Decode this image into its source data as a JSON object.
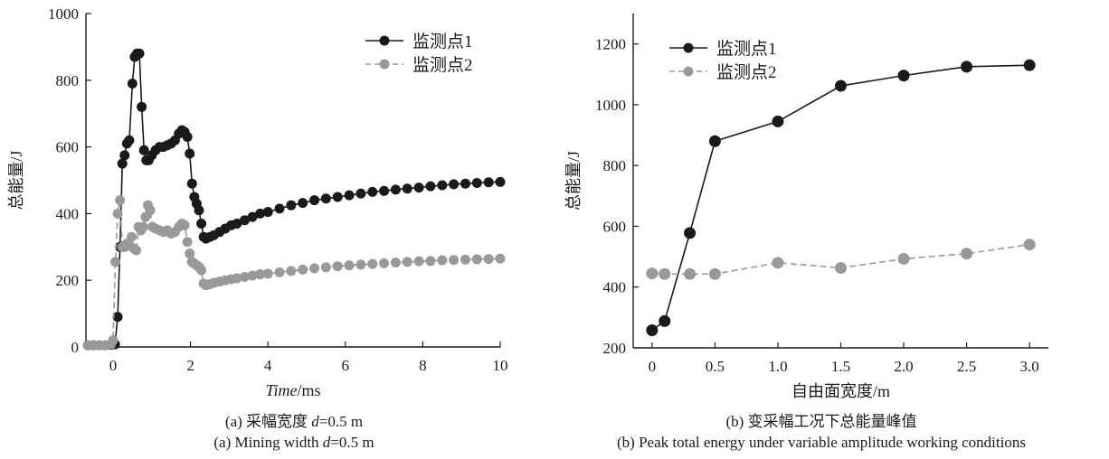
{
  "chart_data": [
    {
      "type": "scatter",
      "panel": "a",
      "xlabel_italic": "Time",
      "xlabel_unit": "/ms",
      "ylabel": "总能量/J",
      "xlim": [
        -0.7,
        10
      ],
      "ylim": [
        0,
        1000
      ],
      "xticks": [
        0,
        2,
        4,
        6,
        8,
        10
      ],
      "yticks": [
        0,
        200,
        400,
        600,
        800,
        1000
      ],
      "legend_position": "top-right",
      "caption_cn_prefix": "(a) 采幅宽度 ",
      "caption_cn_var": "d",
      "caption_cn_suffix": "=0.5 m",
      "caption_en_prefix": "(a) Mining width ",
      "caption_en_var": "d",
      "caption_en_suffix": "=0.5 m",
      "series": [
        {
          "name": "监测点1",
          "color": "#1a1a1a",
          "line_style": "solid",
          "x": [
            -0.65,
            -0.5,
            -0.35,
            -0.2,
            -0.05,
            0.05,
            0.12,
            0.18,
            0.24,
            0.3,
            0.36,
            0.42,
            0.5,
            0.56,
            0.62,
            0.68,
            0.74,
            0.8,
            0.86,
            0.92,
            1.0,
            1.1,
            1.2,
            1.3,
            1.4,
            1.5,
            1.6,
            1.7,
            1.78,
            1.85,
            1.92,
            1.98,
            2.04,
            2.1,
            2.16,
            2.22,
            2.28,
            2.34,
            2.4,
            2.5,
            2.6,
            2.75,
            2.9,
            3.05,
            3.2,
            3.4,
            3.6,
            3.8,
            4.0,
            4.3,
            4.6,
            4.9,
            5.2,
            5.5,
            5.8,
            6.1,
            6.4,
            6.7,
            7.0,
            7.3,
            7.6,
            7.9,
            8.2,
            8.5,
            8.8,
            9.1,
            9.4,
            9.7,
            10.0
          ],
          "y": [
            5,
            5,
            5,
            5,
            6,
            8,
            90,
            300,
            550,
            575,
            610,
            620,
            790,
            870,
            880,
            880,
            720,
            590,
            560,
            560,
            575,
            590,
            600,
            600,
            605,
            610,
            620,
            640,
            650,
            645,
            630,
            580,
            490,
            450,
            430,
            410,
            370,
            330,
            325,
            330,
            335,
            345,
            355,
            365,
            370,
            380,
            390,
            400,
            405,
            415,
            425,
            432,
            440,
            445,
            450,
            455,
            460,
            465,
            468,
            472,
            475,
            478,
            482,
            485,
            488,
            490,
            492,
            494,
            495
          ]
        },
        {
          "name": "监测点2",
          "color": "#999999",
          "line_style": "dashed",
          "x": [
            -0.65,
            -0.5,
            -0.35,
            -0.2,
            -0.05,
            0.0,
            0.06,
            0.12,
            0.18,
            0.24,
            0.3,
            0.36,
            0.42,
            0.48,
            0.54,
            0.6,
            0.66,
            0.72,
            0.78,
            0.84,
            0.9,
            0.96,
            1.02,
            1.1,
            1.2,
            1.3,
            1.4,
            1.5,
            1.6,
            1.7,
            1.78,
            1.85,
            1.92,
            1.98,
            2.04,
            2.1,
            2.16,
            2.22,
            2.28,
            2.34,
            2.4,
            2.5,
            2.6,
            2.75,
            2.9,
            3.05,
            3.2,
            3.4,
            3.6,
            3.8,
            4.0,
            4.3,
            4.6,
            4.9,
            5.2,
            5.5,
            5.8,
            6.1,
            6.4,
            6.7,
            7.0,
            7.3,
            7.6,
            7.9,
            8.2,
            8.5,
            8.8,
            9.1,
            9.4,
            9.7,
            10.0
          ],
          "y": [
            5,
            5,
            5,
            5,
            8,
            20,
            255,
            400,
            440,
            300,
            300,
            310,
            305,
            330,
            295,
            290,
            360,
            350,
            360,
            390,
            425,
            410,
            360,
            355,
            350,
            345,
            350,
            340,
            345,
            360,
            370,
            365,
            315,
            280,
            255,
            250,
            245,
            240,
            230,
            190,
            185,
            188,
            192,
            196,
            200,
            203,
            206,
            210,
            214,
            218,
            220,
            224,
            228,
            232,
            236,
            239,
            242,
            245,
            247,
            249,
            251,
            253,
            255,
            257,
            258,
            260,
            261,
            262,
            263,
            264,
            265
          ]
        }
      ]
    },
    {
      "type": "line",
      "panel": "b",
      "xlabel": "自由面宽度/m",
      "ylabel": "总能量/J",
      "xlim": [
        -0.15,
        3.15
      ],
      "ylim": [
        200,
        1300
      ],
      "xticks": [
        0,
        0.5,
        1.0,
        1.5,
        2.0,
        2.5,
        3.0
      ],
      "xtick_labels": [
        "0",
        "0.5",
        "1.0",
        "1.5",
        "2.0",
        "2.5",
        "3.0"
      ],
      "yticks": [
        200,
        400,
        600,
        800,
        1000,
        1200
      ],
      "legend_position": "top-left",
      "caption_cn": "(b) 变采幅工况下总能量峰值",
      "caption_en": "(b) Peak total energy under variable amplitude working conditions",
      "series": [
        {
          "name": "监测点1",
          "color": "#1a1a1a",
          "line_style": "solid",
          "x": [
            0,
            0.1,
            0.3,
            0.5,
            1.0,
            1.5,
            2.0,
            2.5,
            3.0
          ],
          "y": [
            258,
            288,
            578,
            880,
            945,
            1062,
            1096,
            1125,
            1130
          ]
        },
        {
          "name": "监测点2",
          "color": "#999999",
          "line_style": "dashed",
          "x": [
            0,
            0.1,
            0.3,
            0.5,
            1.0,
            1.5,
            2.0,
            2.5,
            3.0
          ],
          "y": [
            445,
            443,
            443,
            443,
            480,
            463,
            493,
            510,
            540
          ]
        }
      ]
    }
  ]
}
